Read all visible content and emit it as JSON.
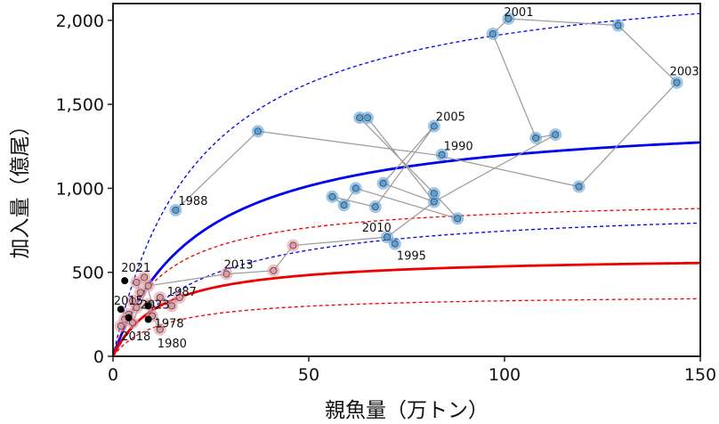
{
  "chart_data": {
    "type": "scatter",
    "xlabel": "親魚量（万トン）",
    "ylabel": "加入量（億尾）",
    "xlim": [
      0,
      150
    ],
    "ylim": [
      0,
      2100
    ],
    "xticks": [
      0,
      50,
      100,
      150
    ],
    "xtick_labels": [
      "0",
      "50",
      "100",
      "150"
    ],
    "yticks": [
      0,
      500,
      1000,
      1500,
      2000
    ],
    "ytick_labels": [
      "0",
      "500",
      "1,000",
      "1,500",
      "2,000"
    ],
    "grid": false,
    "legend": "none",
    "series": [
      {
        "color": "#5aa0d8",
        "points": [
          {
            "x": 16,
            "y": 870
          },
          {
            "x": 37,
            "y": 1340
          },
          {
            "x": 65,
            "y": 1420
          },
          {
            "x": 63,
            "y": 1420
          },
          {
            "x": 69,
            "y": 1030
          },
          {
            "x": 82,
            "y": 970
          },
          {
            "x": 82,
            "y": 920
          },
          {
            "x": 67,
            "y": 890
          },
          {
            "x": 59,
            "y": 900
          },
          {
            "x": 56,
            "y": 950
          },
          {
            "x": 62,
            "y": 1000
          },
          {
            "x": 88,
            "y": 820
          },
          {
            "x": 82,
            "y": 1370
          },
          {
            "x": 84,
            "y": 1200
          },
          {
            "x": 119,
            "y": 1010
          },
          {
            "x": 144,
            "y": 1630
          },
          {
            "x": 129,
            "y": 1970
          },
          {
            "x": 101,
            "y": 2010
          },
          {
            "x": 97,
            "y": 1920
          },
          {
            "x": 108,
            "y": 1300
          },
          {
            "x": 113,
            "y": 1320
          },
          {
            "x": 70,
            "y": 710
          },
          {
            "x": 72,
            "y": 670
          }
        ],
        "path": [
          [
            16,
            870
          ],
          [
            37,
            1340
          ],
          [
            82,
            1200
          ],
          [
            119,
            1010
          ],
          [
            144,
            1630
          ],
          [
            129,
            1970
          ],
          [
            101,
            2010
          ],
          [
            97,
            1920
          ],
          [
            108,
            1300
          ],
          [
            113,
            1320
          ],
          [
            82,
            920
          ],
          [
            65,
            1420
          ],
          [
            63,
            1420
          ],
          [
            82,
            970
          ],
          [
            88,
            820
          ],
          [
            62,
            1000
          ],
          [
            59,
            900
          ],
          [
            56,
            950
          ],
          [
            67,
            890
          ],
          [
            82,
            1370
          ],
          [
            69,
            1030
          ],
          [
            82,
            920
          ],
          [
            70,
            710
          ],
          [
            72,
            670
          ]
        ]
      },
      {
        "color": "#e39aa3",
        "points": [
          {
            "x": 17,
            "y": 350
          },
          {
            "x": 15,
            "y": 300
          },
          {
            "x": 12,
            "y": 350
          },
          {
            "x": 9,
            "y": 310
          },
          {
            "x": 10,
            "y": 240
          },
          {
            "x": 12,
            "y": 160
          },
          {
            "x": 8,
            "y": 470
          },
          {
            "x": 6,
            "y": 440
          },
          {
            "x": 7,
            "y": 380
          },
          {
            "x": 5,
            "y": 330
          },
          {
            "x": 6,
            "y": 290
          },
          {
            "x": 4,
            "y": 250
          },
          {
            "x": 3,
            "y": 220
          },
          {
            "x": 2,
            "y": 180
          },
          {
            "x": 5,
            "y": 200
          },
          {
            "x": 9,
            "y": 420
          },
          {
            "x": 29,
            "y": 490
          },
          {
            "x": 41,
            "y": 510
          },
          {
            "x": 46,
            "y": 660
          }
        ],
        "path": [
          [
            17,
            350
          ],
          [
            15,
            300
          ],
          [
            12,
            350
          ],
          [
            9,
            310
          ],
          [
            10,
            240
          ],
          [
            12,
            160
          ],
          [
            8,
            470
          ],
          [
            6,
            440
          ],
          [
            7,
            380
          ],
          [
            5,
            330
          ],
          [
            6,
            290
          ],
          [
            4,
            250
          ],
          [
            3,
            220
          ],
          [
            2,
            180
          ],
          [
            5,
            200
          ],
          [
            9,
            420
          ],
          [
            29,
            490
          ],
          [
            41,
            510
          ],
          [
            46,
            660
          ],
          [
            70,
            710
          ]
        ]
      },
      {
        "color": "#000000",
        "points": [
          {
            "x": 3,
            "y": 450
          },
          {
            "x": 2,
            "y": 280
          },
          {
            "x": 4,
            "y": 230
          },
          {
            "x": 9,
            "y": 300
          },
          {
            "x": 9,
            "y": 220
          }
        ]
      }
    ],
    "curves": [
      {
        "color": "#0000ee",
        "style": "solid",
        "a": 1460,
        "b": 22
      },
      {
        "color": "#0000ee",
        "style": "dashed",
        "a": 2340,
        "b": 22
      },
      {
        "color": "#0000ee",
        "style": "dashed",
        "a": 910,
        "b": 22
      },
      {
        "color": "#ee0000",
        "style": "solid",
        "a": 600,
        "b": 12
      },
      {
        "color": "#ee0000",
        "style": "dashed",
        "a": 950,
        "b": 12
      },
      {
        "color": "#ee0000",
        "style": "dashed",
        "a": 370,
        "b": 12
      }
    ],
    "annotations": [
      {
        "text": "2001",
        "x": 101,
        "y": 2010
      },
      {
        "text": "2003",
        "x": 144,
        "y": 1630
      },
      {
        "text": "2005",
        "x": 82,
        "y": 1370
      },
      {
        "text": "1990",
        "x": 84,
        "y": 1200
      },
      {
        "text": "1988",
        "x": 16,
        "y": 870
      },
      {
        "text": "2010",
        "x": 72,
        "y": 710
      },
      {
        "text": "1995",
        "x": 72,
        "y": 670
      },
      {
        "text": "2013",
        "x": 29,
        "y": 490
      },
      {
        "text": "2021",
        "x": 3,
        "y": 450
      },
      {
        "text": "1987",
        "x": 12,
        "y": 350
      },
      {
        "text": "2015",
        "x": 2,
        "y": 280
      },
      {
        "text": "2023",
        "x": 9,
        "y": 300
      },
      {
        "text": "2018",
        "x": 3,
        "y": 180
      },
      {
        "text": "1978",
        "x": 9,
        "y": 220
      },
      {
        "text": "1980",
        "x": 12,
        "y": 160
      }
    ]
  }
}
